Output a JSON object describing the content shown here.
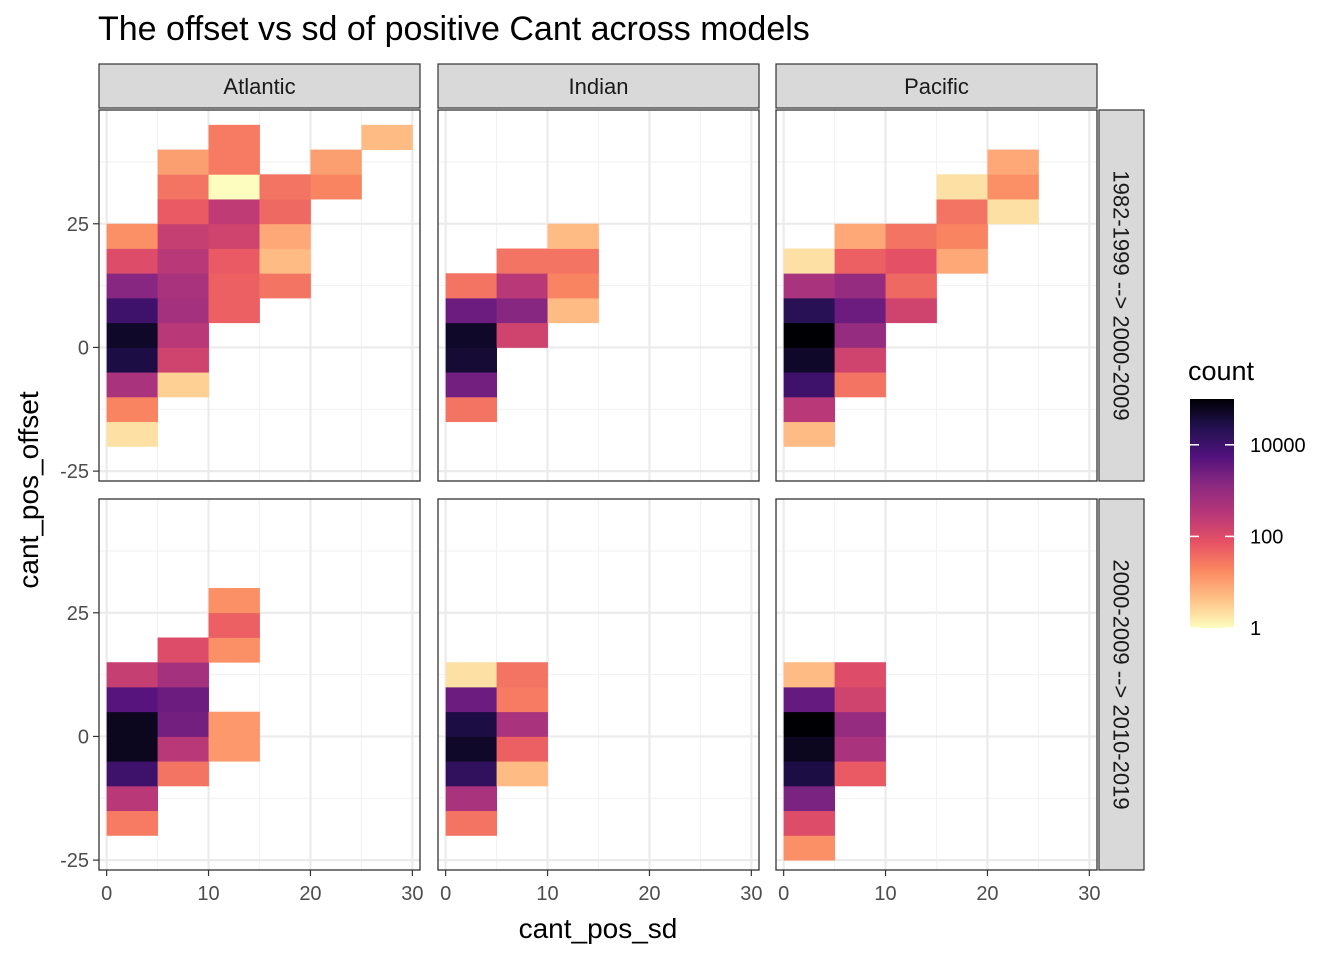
{
  "chart_data": {
    "type": "heatmap",
    "title": "The offset vs sd of positive Cant across models",
    "xlabel": "cant_pos_sd",
    "ylabel": "cant_pos_offset",
    "xlim": [
      -0.75,
      30.75
    ],
    "ylim": [
      -27,
      48
    ],
    "x_ticks": [
      0,
      10,
      20,
      30
    ],
    "y_ticks": [
      -25,
      0,
      25
    ],
    "bin_width_x": 5,
    "bin_height_y": 5,
    "grid": true,
    "facet_columns": [
      "Atlantic",
      "Indian",
      "Pacific"
    ],
    "facet_rows": [
      "1982-1999 --> 2000-2009",
      "2000-2009 --> 2010-2019"
    ],
    "legend": {
      "title": "count",
      "position": "right",
      "scale": "log10",
      "range": [
        1,
        100000
      ],
      "breaks": [
        1,
        100,
        10000
      ],
      "break_labels": [
        "1",
        "100",
        "10000"
      ],
      "colors": [
        "#fcfdbf",
        "#fec287",
        "#fb8861",
        "#e65164",
        "#b73779",
        "#8c2981",
        "#51127c",
        "#221150",
        "#000004"
      ]
    },
    "panels": [
      {
        "col": "Atlantic",
        "row": "1982-1999 --> 2000-2009",
        "cells": [
          {
            "x": 0,
            "y": -20,
            "count": 2
          },
          {
            "x": 0,
            "y": -15,
            "count": 20
          },
          {
            "x": 0,
            "y": -10,
            "count": 500
          },
          {
            "x": 0,
            "y": -5,
            "count": 30000
          },
          {
            "x": 0,
            "y": 0,
            "count": 50000
          },
          {
            "x": 0,
            "y": 5,
            "count": 10000
          },
          {
            "x": 0,
            "y": 10,
            "count": 1500
          },
          {
            "x": 0,
            "y": 15,
            "count": 100
          },
          {
            "x": 0,
            "y": 20,
            "count": 15
          },
          {
            "x": 5,
            "y": -10,
            "count": 3
          },
          {
            "x": 5,
            "y": -5,
            "count": 150
          },
          {
            "x": 5,
            "y": 0,
            "count": 300
          },
          {
            "x": 5,
            "y": 5,
            "count": 600
          },
          {
            "x": 5,
            "y": 10,
            "count": 500
          },
          {
            "x": 5,
            "y": 15,
            "count": 300
          },
          {
            "x": 5,
            "y": 20,
            "count": 200
          },
          {
            "x": 5,
            "y": 25,
            "count": 60
          },
          {
            "x": 5,
            "y": 30,
            "count": 30
          },
          {
            "x": 5,
            "y": 35,
            "count": 10
          },
          {
            "x": 10,
            "y": 5,
            "count": 50
          },
          {
            "x": 10,
            "y": 10,
            "count": 50
          },
          {
            "x": 10,
            "y": 15,
            "count": 60
          },
          {
            "x": 10,
            "y": 20,
            "count": 150
          },
          {
            "x": 10,
            "y": 25,
            "count": 250
          },
          {
            "x": 10,
            "y": 30,
            "count": 1
          },
          {
            "x": 10,
            "y": 35,
            "count": 25
          },
          {
            "x": 10,
            "y": 40,
            "count": 25
          },
          {
            "x": 15,
            "y": 10,
            "count": 30
          },
          {
            "x": 15,
            "y": 15,
            "count": 5
          },
          {
            "x": 15,
            "y": 20,
            "count": 8
          },
          {
            "x": 15,
            "y": 25,
            "count": 40
          },
          {
            "x": 15,
            "y": 30,
            "count": 30
          },
          {
            "x": 20,
            "y": 30,
            "count": 20
          },
          {
            "x": 20,
            "y": 35,
            "count": 10
          },
          {
            "x": 25,
            "y": 40,
            "count": 5
          }
        ]
      },
      {
        "col": "Indian",
        "row": "1982-1999 --> 2000-2009",
        "cells": [
          {
            "x": 0,
            "y": -15,
            "count": 30
          },
          {
            "x": 0,
            "y": -10,
            "count": 2500
          },
          {
            "x": 0,
            "y": -5,
            "count": 40000
          },
          {
            "x": 0,
            "y": 0,
            "count": 50000
          },
          {
            "x": 0,
            "y": 5,
            "count": 3000
          },
          {
            "x": 0,
            "y": 10,
            "count": 30
          },
          {
            "x": 5,
            "y": 0,
            "count": 150
          },
          {
            "x": 5,
            "y": 5,
            "count": 1500
          },
          {
            "x": 5,
            "y": 10,
            "count": 300
          },
          {
            "x": 5,
            "y": 15,
            "count": 30
          },
          {
            "x": 10,
            "y": 5,
            "count": 5
          },
          {
            "x": 10,
            "y": 10,
            "count": 20
          },
          {
            "x": 10,
            "y": 15,
            "count": 30
          },
          {
            "x": 10,
            "y": 20,
            "count": 5
          }
        ]
      },
      {
        "col": "Pacific",
        "row": "1982-1999 --> 2000-2009",
        "cells": [
          {
            "x": 0,
            "y": -20,
            "count": 5
          },
          {
            "x": 0,
            "y": -15,
            "count": 300
          },
          {
            "x": 0,
            "y": -10,
            "count": 10000
          },
          {
            "x": 0,
            "y": -5,
            "count": 50000
          },
          {
            "x": 0,
            "y": 0,
            "count": 100000
          },
          {
            "x": 0,
            "y": 5,
            "count": 20000
          },
          {
            "x": 0,
            "y": 10,
            "count": 500
          },
          {
            "x": 0,
            "y": 15,
            "count": 2
          },
          {
            "x": 5,
            "y": -10,
            "count": 30
          },
          {
            "x": 5,
            "y": -5,
            "count": 150
          },
          {
            "x": 5,
            "y": 0,
            "count": 1000
          },
          {
            "x": 5,
            "y": 5,
            "count": 3000
          },
          {
            "x": 5,
            "y": 10,
            "count": 1000
          },
          {
            "x": 5,
            "y": 15,
            "count": 50
          },
          {
            "x": 5,
            "y": 20,
            "count": 8
          },
          {
            "x": 10,
            "y": 5,
            "count": 150
          },
          {
            "x": 10,
            "y": 10,
            "count": 40
          },
          {
            "x": 10,
            "y": 15,
            "count": 80
          },
          {
            "x": 10,
            "y": 20,
            "count": 30
          },
          {
            "x": 15,
            "y": 15,
            "count": 8
          },
          {
            "x": 15,
            "y": 20,
            "count": 20
          },
          {
            "x": 15,
            "y": 25,
            "count": 30
          },
          {
            "x": 15,
            "y": 30,
            "count": 2
          },
          {
            "x": 20,
            "y": 25,
            "count": 2
          },
          {
            "x": 20,
            "y": 30,
            "count": 15
          },
          {
            "x": 20,
            "y": 35,
            "count": 8
          }
        ]
      },
      {
        "col": "Atlantic",
        "row": "2000-2009 --> 2010-2019",
        "cells": [
          {
            "x": 0,
            "y": -20,
            "count": 25
          },
          {
            "x": 0,
            "y": -15,
            "count": 300
          },
          {
            "x": 0,
            "y": -10,
            "count": 10000
          },
          {
            "x": 0,
            "y": -5,
            "count": 60000
          },
          {
            "x": 0,
            "y": 0,
            "count": 60000
          },
          {
            "x": 0,
            "y": 5,
            "count": 5000
          },
          {
            "x": 0,
            "y": 10,
            "count": 200
          },
          {
            "x": 5,
            "y": -10,
            "count": 30
          },
          {
            "x": 5,
            "y": -5,
            "count": 300
          },
          {
            "x": 5,
            "y": 0,
            "count": 2500
          },
          {
            "x": 5,
            "y": 5,
            "count": 3000
          },
          {
            "x": 5,
            "y": 10,
            "count": 600
          },
          {
            "x": 5,
            "y": 15,
            "count": 100
          },
          {
            "x": 10,
            "y": -5,
            "count": 12
          },
          {
            "x": 10,
            "y": 0,
            "count": 12
          },
          {
            "x": 10,
            "y": 15,
            "count": 15
          },
          {
            "x": 10,
            "y": 20,
            "count": 50
          },
          {
            "x": 10,
            "y": 25,
            "count": 15
          }
        ]
      },
      {
        "col": "Indian",
        "row": "2000-2009 --> 2010-2019",
        "cells": [
          {
            "x": 0,
            "y": -20,
            "count": 30
          },
          {
            "x": 0,
            "y": -15,
            "count": 500
          },
          {
            "x": 0,
            "y": -10,
            "count": 15000
          },
          {
            "x": 0,
            "y": -5,
            "count": 50000
          },
          {
            "x": 0,
            "y": 0,
            "count": 30000
          },
          {
            "x": 0,
            "y": 5,
            "count": 3000
          },
          {
            "x": 0,
            "y": 10,
            "count": 2
          },
          {
            "x": 5,
            "y": -10,
            "count": 5
          },
          {
            "x": 5,
            "y": -5,
            "count": 50
          },
          {
            "x": 5,
            "y": 0,
            "count": 500
          },
          {
            "x": 5,
            "y": 5,
            "count": 25
          },
          {
            "x": 5,
            "y": 10,
            "count": 30
          }
        ]
      },
      {
        "col": "Pacific",
        "row": "2000-2009 --> 2010-2019",
        "cells": [
          {
            "x": 0,
            "y": -25,
            "count": 15
          },
          {
            "x": 0,
            "y": -20,
            "count": 100
          },
          {
            "x": 0,
            "y": -15,
            "count": 2000
          },
          {
            "x": 0,
            "y": -10,
            "count": 30000
          },
          {
            "x": 0,
            "y": -5,
            "count": 60000
          },
          {
            "x": 0,
            "y": 0,
            "count": 100000
          },
          {
            "x": 0,
            "y": 5,
            "count": 3500
          },
          {
            "x": 0,
            "y": 10,
            "count": 5
          },
          {
            "x": 5,
            "y": -10,
            "count": 60
          },
          {
            "x": 5,
            "y": -5,
            "count": 500
          },
          {
            "x": 5,
            "y": 0,
            "count": 1000
          },
          {
            "x": 5,
            "y": 5,
            "count": 150
          },
          {
            "x": 5,
            "y": 10,
            "count": 100
          }
        ]
      }
    ]
  }
}
